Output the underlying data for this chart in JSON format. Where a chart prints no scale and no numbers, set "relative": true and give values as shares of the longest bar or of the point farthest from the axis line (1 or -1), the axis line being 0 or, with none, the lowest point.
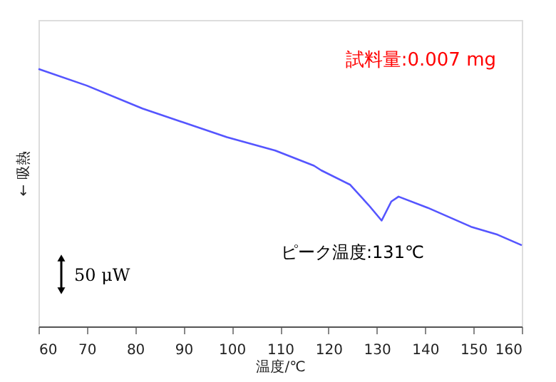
{
  "chart_data": {
    "type": "line",
    "relative": true,
    "xlabel": "温度/℃",
    "ylabel": "← 吸熱",
    "x": [
      60,
      70,
      81.5,
      99,
      109,
      117,
      118.5,
      124.5,
      128.5,
      131,
      133,
      134.5,
      140.5,
      149.5,
      155,
      160
    ],
    "series": [
      {
        "color": "#5555ff",
        "values": [
          1.0,
          0.935,
          0.846,
          0.735,
          0.683,
          0.624,
          0.606,
          0.55,
          0.467,
          0.411,
          0.485,
          0.504,
          0.461,
          0.387,
          0.356,
          0.315
        ]
      }
    ],
    "xlim": [
      60,
      160
    ],
    "xticks": [
      60,
      70,
      80,
      90,
      100,
      110,
      120,
      130,
      140,
      150,
      160
    ],
    "annotations": [
      "試料量:0.007 mg",
      "ピーク温度:131℃",
      "50 μW"
    ],
    "grid": false
  }
}
